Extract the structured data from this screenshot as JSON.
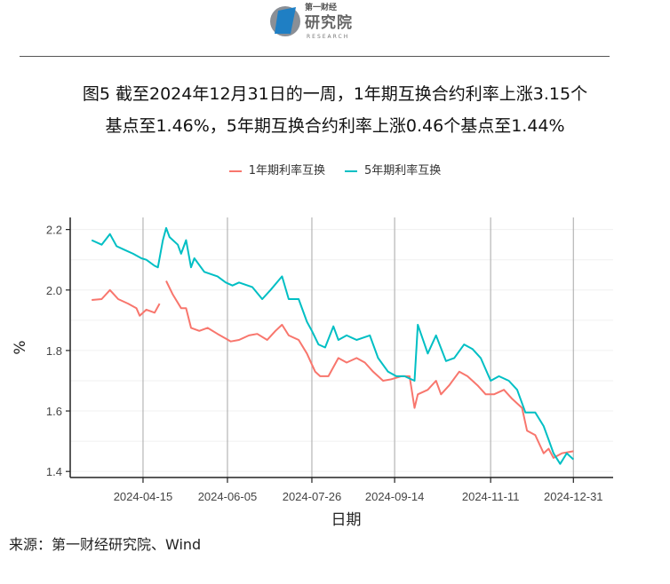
{
  "logo": {
    "top_text": "第一财经",
    "main_text": "研究院",
    "sub_text": "RESEARCH"
  },
  "title_line1": "图5  截至2024年12月31日的一周，1年期互换合约利率上涨3.15个",
  "title_line2": "基点至1.46%，5年期互换合约利率上涨0.46个基点至1.44%",
  "source": "来源：第一财经研究院、Wind",
  "colors": {
    "series1": "#F8766D",
    "series2": "#00BFC4"
  },
  "chart_data": {
    "type": "line",
    "xlabel": "日期",
    "ylabel": "%",
    "x_origin": "2024-04-15",
    "x_unit": "days since x_origin",
    "xlim": [
      -44,
      284
    ],
    "ylim": [
      1.38,
      2.24
    ],
    "y_ticks": [
      1.4,
      1.6,
      1.8,
      2.0,
      2.2
    ],
    "y_tick_labels": [
      "1.4",
      "1.6",
      "1.8",
      "2.0",
      "2.2"
    ],
    "x_ticks": [
      0,
      51,
      102,
      152,
      210,
      260
    ],
    "x_tick_labels": [
      "2024-04-15",
      "2024-06-05",
      "2024-07-26",
      "2024-09-14",
      "2024-11-11",
      "2024-12-31"
    ],
    "legend_position": "top",
    "series": [
      {
        "name": "1年期利率互换",
        "color": "#F8766D",
        "x": [
          -31,
          -25,
          -20,
          -15,
          -9,
          -4,
          -2,
          2,
          7,
          10,
          12,
          14,
          18,
          23,
          26,
          29,
          34,
          39,
          45,
          53,
          58,
          64,
          69,
          75,
          80,
          84,
          88,
          94,
          99,
          104,
          107,
          112,
          118,
          123,
          129,
          134,
          139,
          145,
          150,
          156,
          161,
          164,
          166,
          172,
          177,
          180,
          185,
          191,
          196,
          202,
          207,
          212,
          218,
          223,
          229,
          232,
          237,
          242,
          245,
          248,
          253,
          260
        ],
        "y": [
          1.967,
          1.97,
          2.0,
          1.97,
          1.955,
          1.94,
          1.915,
          1.935,
          1.925,
          1.955,
          null,
          2.03,
          1.985,
          1.94,
          1.94,
          1.875,
          1.865,
          1.875,
          1.855,
          1.83,
          1.835,
          1.85,
          1.855,
          1.835,
          1.865,
          1.885,
          1.85,
          1.835,
          1.79,
          1.73,
          1.715,
          1.715,
          1.775,
          1.76,
          1.775,
          1.76,
          1.73,
          1.7,
          1.705,
          1.715,
          1.715,
          1.61,
          1.655,
          1.67,
          1.7,
          1.655,
          1.685,
          1.73,
          1.715,
          1.685,
          1.655,
          1.655,
          1.67,
          1.64,
          1.61,
          1.535,
          1.52,
          1.46,
          1.475,
          1.445,
          1.46,
          1.467
        ]
      },
      {
        "name": "5年期利率互换",
        "color": "#00BFC4",
        "x": [
          -31,
          -25,
          -20,
          -16,
          -12,
          -6,
          -1,
          2,
          7,
          9,
          12,
          14,
          16,
          21,
          23,
          26,
          29,
          31,
          37,
          45,
          50,
          54,
          58,
          66,
          72,
          77,
          84,
          88,
          94,
          99,
          102,
          106,
          110,
          115,
          118,
          123,
          129,
          137,
          142,
          148,
          153,
          158,
          164,
          166,
          172,
          177,
          183,
          188,
          194,
          199,
          204,
          210,
          215,
          221,
          226,
          231,
          237,
          242,
          245,
          248,
          252,
          256,
          260
        ],
        "y": [
          2.165,
          2.15,
          2.185,
          2.145,
          2.135,
          2.12,
          2.105,
          2.1,
          2.08,
          2.075,
          2.165,
          2.205,
          2.175,
          2.15,
          2.12,
          2.165,
          2.075,
          2.105,
          2.06,
          2.045,
          2.025,
          2.015,
          2.025,
          2.01,
          1.97,
          2.0,
          2.045,
          1.97,
          1.97,
          1.895,
          1.865,
          1.82,
          1.81,
          1.88,
          1.835,
          1.85,
          1.835,
          1.85,
          1.775,
          1.73,
          1.715,
          1.715,
          1.7,
          1.885,
          1.79,
          1.85,
          1.765,
          1.775,
          1.82,
          1.805,
          1.775,
          1.7,
          1.715,
          1.7,
          1.67,
          1.595,
          1.595,
          1.55,
          1.505,
          1.46,
          1.425,
          1.46,
          1.44
        ]
      }
    ]
  }
}
